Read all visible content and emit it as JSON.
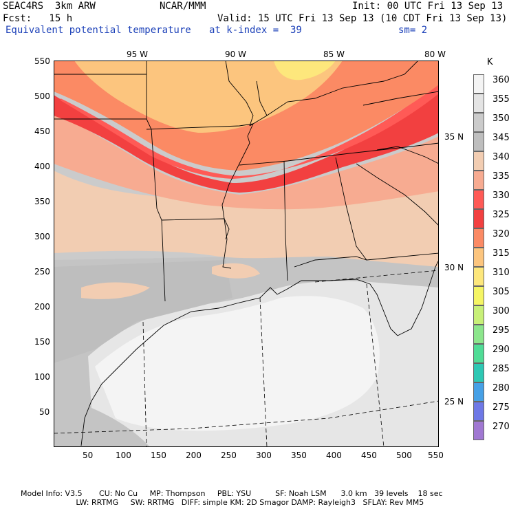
{
  "header": {
    "model": "SEAC4RS  3km ARW",
    "org": "NCAR/MMM",
    "init": "Init: 00 UTC Fri 13 Sep 13",
    "fcst": "Fcst:   15 h",
    "valid": "Valid: 15 UTC Fri 13 Sep 13 (10 CDT Fri 13 Sep 13)",
    "field": "Equivalent potential temperature",
    "level": "at k-index =  39",
    "smooth": "sm= 2"
  },
  "lon_labels": [
    "95 W",
    "90 W",
    "85 W",
    "80 W"
  ],
  "lat_labels": [
    "35 N",
    "30 N",
    "25 N"
  ],
  "x_ticks": [
    "50",
    "100",
    "150",
    "200",
    "250",
    "300",
    "350",
    "400",
    "450",
    "500",
    "550"
  ],
  "y_ticks": [
    "550",
    "500",
    "450",
    "400",
    "350",
    "300",
    "250",
    "200",
    "150",
    "100",
    "50"
  ],
  "colorbar": {
    "unit": "K",
    "levels": [
      "360",
      "355",
      "350",
      "345",
      "340",
      "335",
      "330",
      "325",
      "320",
      "315",
      "310",
      "305",
      "300",
      "295",
      "290",
      "285",
      "280",
      "275",
      "270"
    ],
    "colors": [
      "#f4f4f4",
      "#e4e4e4",
      "#cbcbcb",
      "#bebebe",
      "#f2cdb2",
      "#f7ab91",
      "#ff5a56",
      "#f24040",
      "#fb8a64",
      "#fcc57e",
      "#fde77c",
      "#f5f564",
      "#c8f078",
      "#8ce68c",
      "#50dc96",
      "#2ec8b4",
      "#46a0e6",
      "#6e78e6",
      "#a078d2"
    ]
  },
  "footer": {
    "line1": "Model Info: V3.5       CU: No Cu     MP: Thompson     PBL: YSU          SF: Noah LSM      3.0 km   39 levels    18 sec",
    "line2": "                       LW: RRTMG     SW: RRTMG   DIFF: simple KM: 2D Smagor DAMP: Rayleigh3   SFLAY: Rev MM5"
  }
}
